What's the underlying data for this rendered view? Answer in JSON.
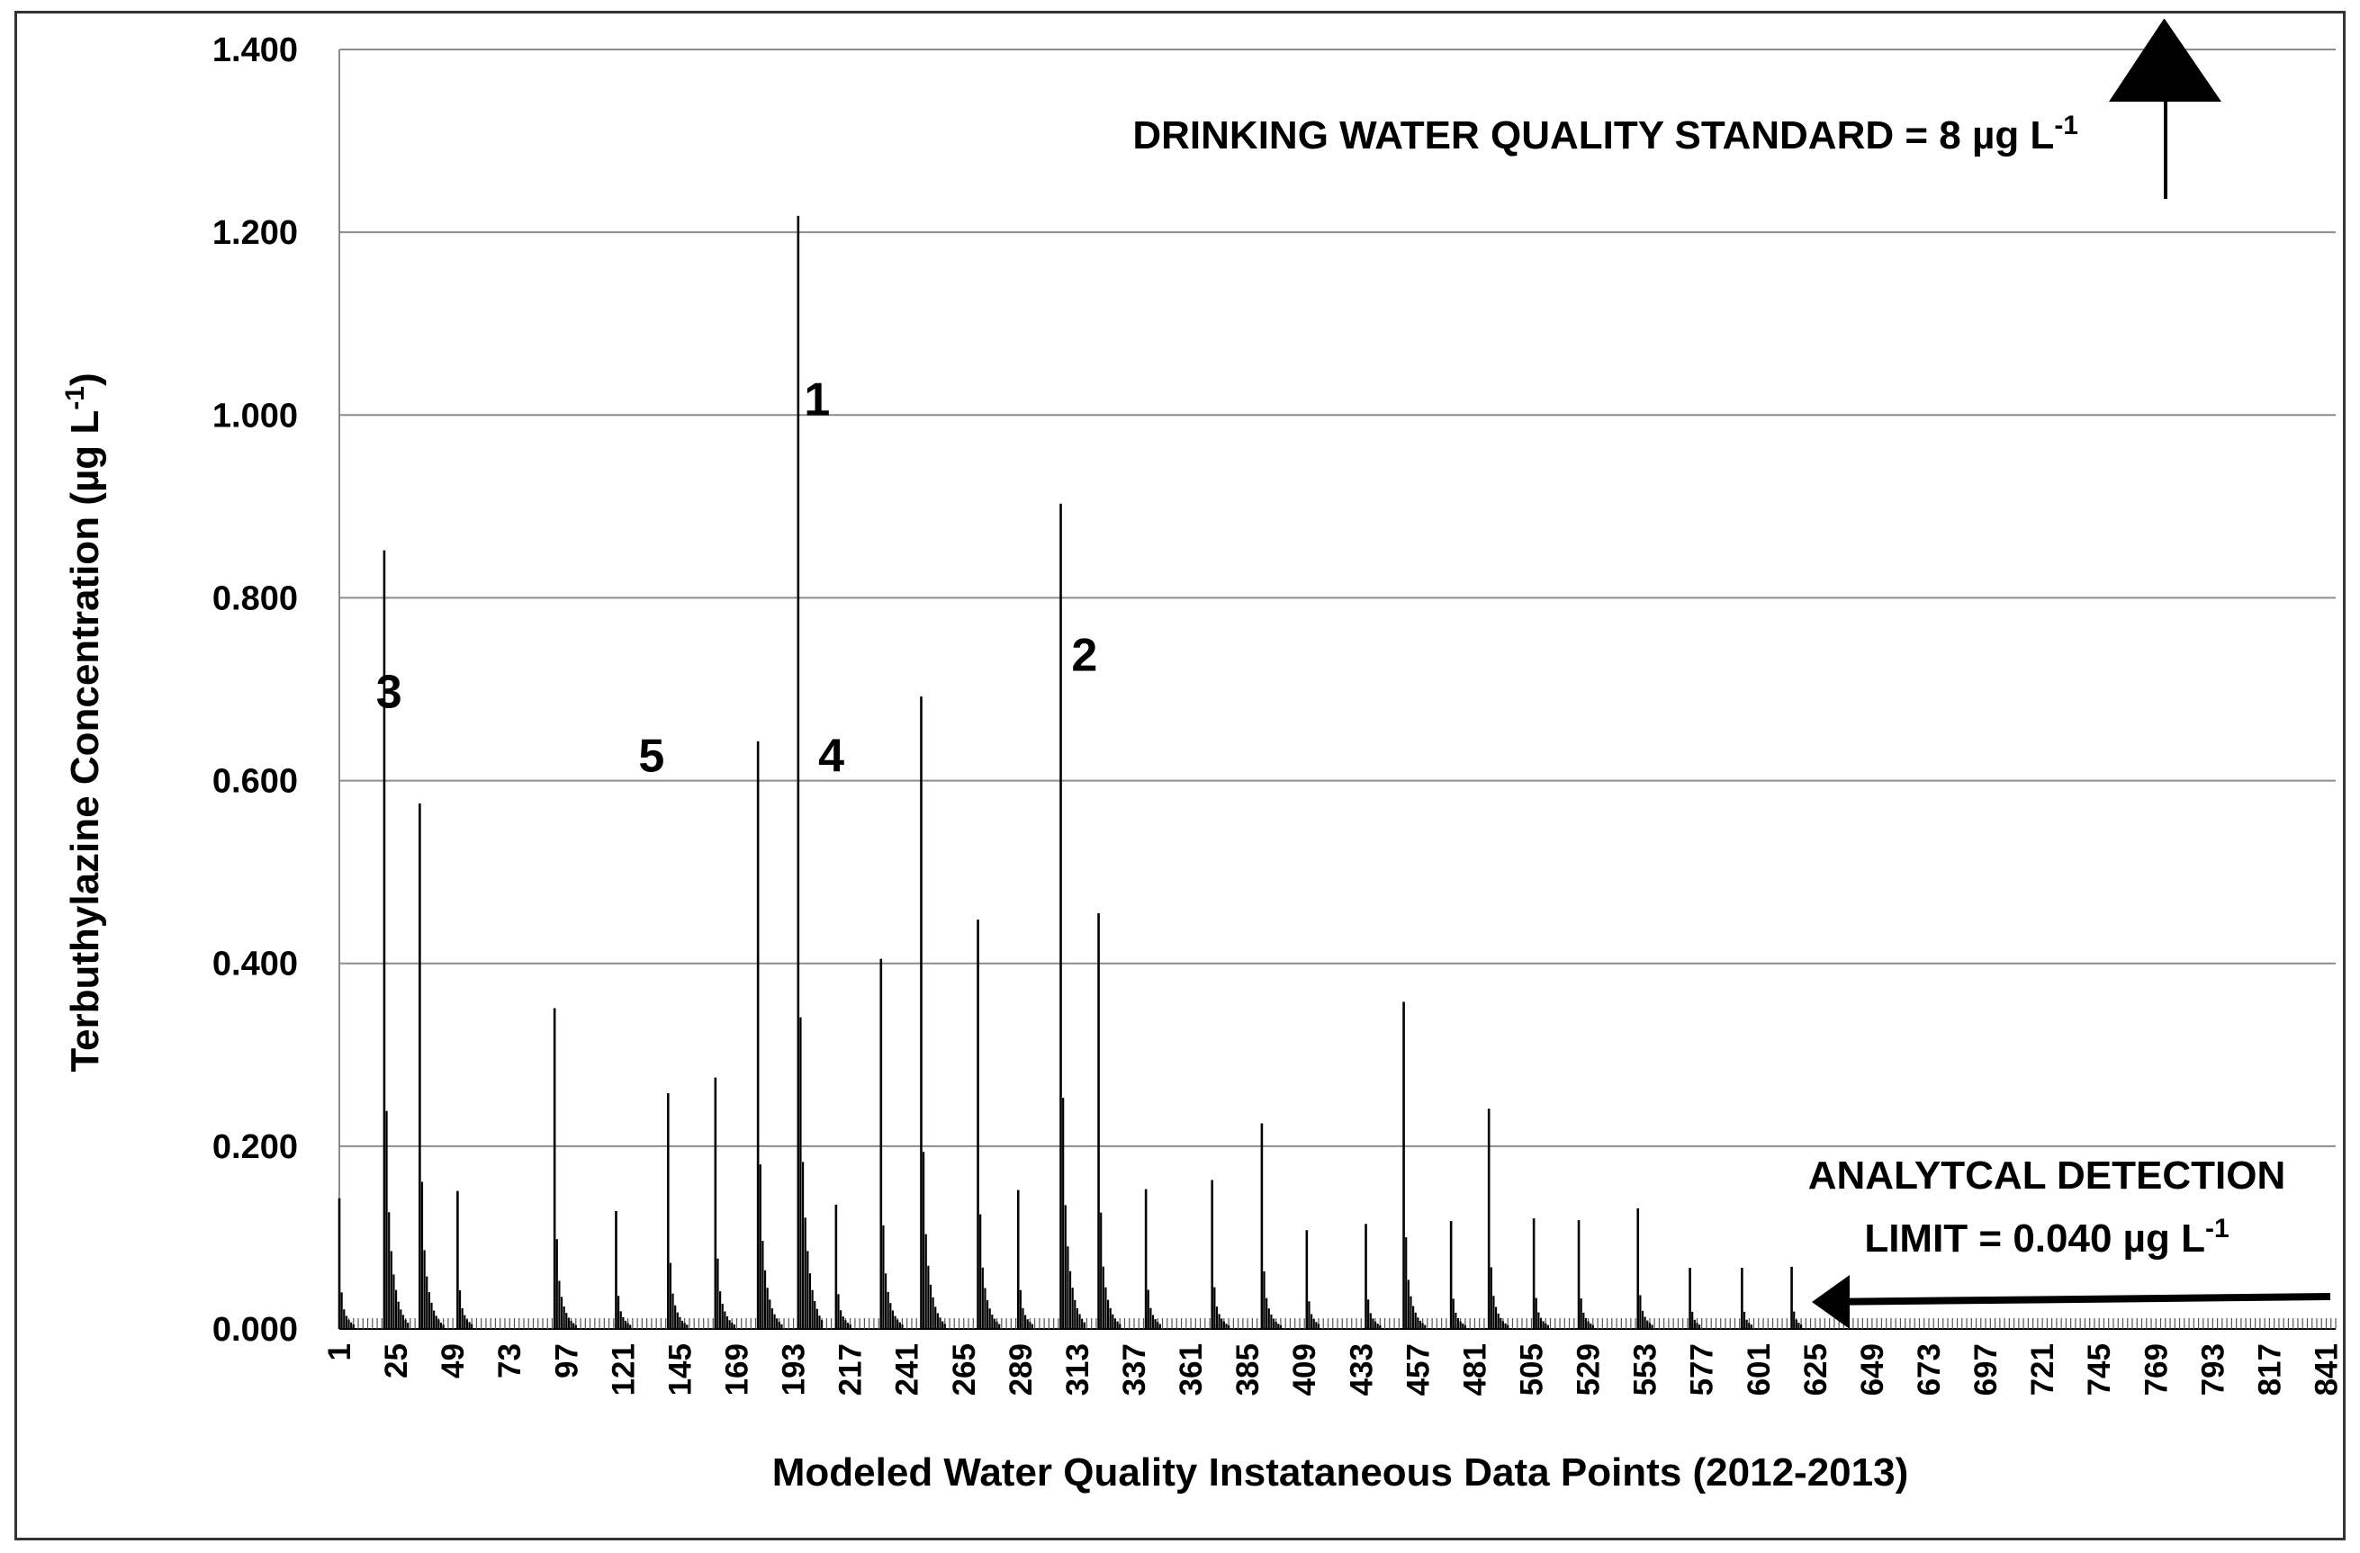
{
  "chart_data": {
    "type": "bar",
    "ylabel": "Terbuthylazine Concentration (µg L",
    "ylabel_sup": "-1",
    "ylabel_suffix": ")",
    "xlabel": "Modeled Water Quality Instataneous Data Points (2012-2013)",
    "ylim": [
      0,
      1.4
    ],
    "y_ticks": [
      "0.000",
      "0.200",
      "0.400",
      "0.600",
      "0.800",
      "1.000",
      "1.200",
      "1.400"
    ],
    "y_tick_values": [
      0,
      0.2,
      0.4,
      0.6,
      0.8,
      1.0,
      1.2,
      1.4
    ],
    "x_range": [
      1,
      845
    ],
    "x_tick_labels": [
      "1",
      "25",
      "49",
      "73",
      "97",
      "121",
      "145",
      "169",
      "193",
      "217",
      "241",
      "265",
      "289",
      "313",
      "337",
      "361",
      "385",
      "409",
      "433",
      "457",
      "481",
      "505",
      "529",
      "553",
      "577",
      "601",
      "625",
      "649",
      "673",
      "697",
      "721",
      "745",
      "769",
      "793",
      "817",
      "841"
    ],
    "x_tick_values": [
      1,
      25,
      49,
      73,
      97,
      121,
      145,
      169,
      193,
      217,
      241,
      265,
      289,
      313,
      337,
      361,
      385,
      409,
      433,
      457,
      481,
      505,
      529,
      553,
      577,
      601,
      625,
      649,
      673,
      697,
      721,
      745,
      769,
      793,
      817,
      841
    ],
    "events": [
      {
        "start": 1,
        "peak": 0.143
      },
      {
        "start": 20,
        "peak": 0.852
      },
      {
        "start": 35,
        "peak": 0.575
      },
      {
        "start": 51,
        "peak": 0.151
      },
      {
        "start": 92,
        "peak": 0.351
      },
      {
        "start": 118,
        "peak": 0.129
      },
      {
        "start": 140,
        "peak": 0.258
      },
      {
        "start": 160,
        "peak": 0.275
      },
      {
        "start": 178,
        "peak": 0.643
      },
      {
        "start": 195,
        "peak": 1.218
      },
      {
        "start": 211,
        "peak": 0.136
      },
      {
        "start": 230,
        "peak": 0.405
      },
      {
        "start": 247,
        "peak": 0.692
      },
      {
        "start": 271,
        "peak": 0.448
      },
      {
        "start": 288,
        "peak": 0.152
      },
      {
        "start": 306,
        "peak": 0.903
      },
      {
        "start": 322,
        "peak": 0.455
      },
      {
        "start": 342,
        "peak": 0.153
      },
      {
        "start": 370,
        "peak": 0.163
      },
      {
        "start": 391,
        "peak": 0.225
      },
      {
        "start": 410,
        "peak": 0.108
      },
      {
        "start": 435,
        "peak": 0.115
      },
      {
        "start": 451,
        "peak": 0.358
      },
      {
        "start": 471,
        "peak": 0.118
      },
      {
        "start": 487,
        "peak": 0.241
      },
      {
        "start": 506,
        "peak": 0.121
      },
      {
        "start": 525,
        "peak": 0.119
      },
      {
        "start": 550,
        "peak": 0.132
      },
      {
        "start": 572,
        "peak": 0.067
      },
      {
        "start": 594,
        "peak": 0.067
      },
      {
        "start": 615,
        "peak": 0.068
      }
    ],
    "detection_limit": 0.04,
    "peak_labels": [
      {
        "text": "1",
        "x": 203,
        "y": 1.0
      },
      {
        "text": "2",
        "x": 316,
        "y": 0.72
      },
      {
        "text": "3",
        "x": 22,
        "y": 0.68
      },
      {
        "text": "4",
        "x": 209,
        "y": 0.61
      },
      {
        "text": "5",
        "x": 133,
        "y": 0.61
      }
    ]
  },
  "annotations": {
    "standard_prefix": "DRINKING WATER QUALITY STANDARD = 8 µg L",
    "standard_sup": "-1",
    "detection_line1": "ANALYTCAL DETECTION",
    "detection_line2": "LIMIT   = 0.040 µg L",
    "detection_sup": "-1"
  }
}
